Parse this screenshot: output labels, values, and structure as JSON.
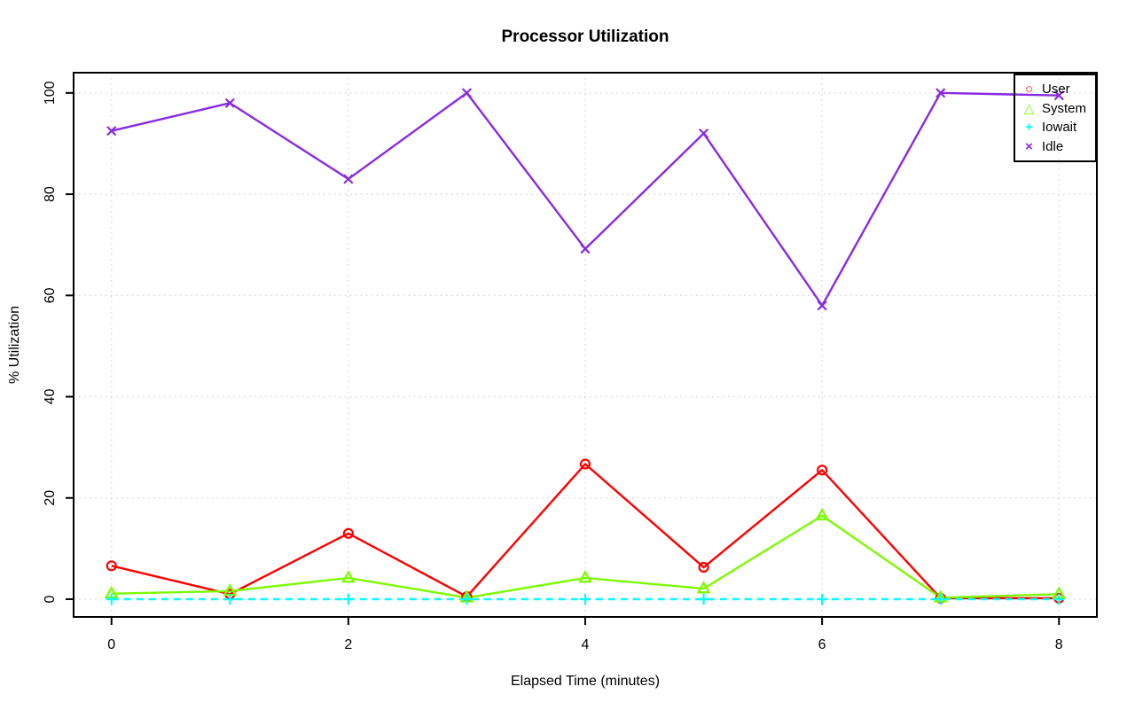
{
  "chart_data": {
    "type": "line",
    "title": "Processor Utilization",
    "xlabel": "Elapsed Time (minutes)",
    "ylabel": "% Utilization",
    "x": [
      0,
      1,
      2,
      3,
      4,
      5,
      6,
      7,
      8
    ],
    "xticks": [
      0,
      2,
      4,
      6,
      8
    ],
    "yticks": [
      0,
      20,
      40,
      60,
      80,
      100
    ],
    "xlim": [
      -0.32,
      8.32
    ],
    "ylim": [
      -3.5,
      104
    ],
    "grid": true,
    "grid_style": "dotted",
    "legend_position": "top-right",
    "series": [
      {
        "name": "User",
        "color": "#FF0000",
        "marker": "circle",
        "glyph": "○",
        "line": "solid",
        "values": [
          6.6,
          1.0,
          13.0,
          0.5,
          26.7,
          6.3,
          25.5,
          0.2,
          0.2
        ]
      },
      {
        "name": "System",
        "color": "#7CFC00",
        "marker": "triangle",
        "glyph": "△",
        "line": "solid",
        "values": [
          1.1,
          1.6,
          4.2,
          0.3,
          4.2,
          2.1,
          16.5,
          0.3,
          1.0
        ]
      },
      {
        "name": "Iowait",
        "color": "#00FFFF",
        "marker": "plus",
        "glyph": "+",
        "line": "dashed",
        "values": [
          0,
          0,
          0,
          0,
          0,
          0,
          0,
          0,
          0
        ]
      },
      {
        "name": "Idle",
        "color": "#8A2BE2",
        "marker": "x",
        "glyph": "×",
        "line": "solid",
        "values": [
          92.5,
          98.0,
          83.0,
          100.0,
          69.2,
          92.0,
          58.0,
          100.0,
          99.5
        ]
      }
    ],
    "colors": {
      "grid": "#D3D3D3",
      "axis": "#000000",
      "background": "#FFFFFF"
    }
  }
}
